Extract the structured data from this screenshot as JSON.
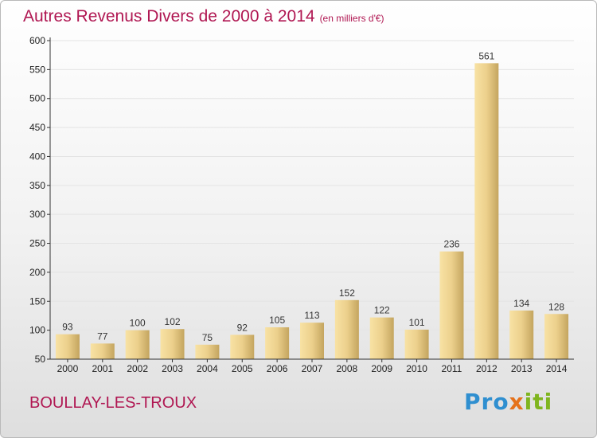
{
  "title": "Autres Revenus Divers de 2000 à 2014",
  "unit": "(en milliers d'€)",
  "commune": "BOULLAY-LES-TROUX",
  "logo": {
    "p1": "Pro",
    "p2": "x",
    "p3": "iti"
  },
  "colors": {
    "title": "#b01752",
    "bar_light": "#f8e2a4",
    "bar_dark": "#c4a55f",
    "axis": "#333333",
    "grid": "#e4e4e4"
  },
  "chart_data": {
    "type": "bar",
    "categories": [
      "2000",
      "2001",
      "2002",
      "2003",
      "2004",
      "2005",
      "2006",
      "2007",
      "2008",
      "2009",
      "2010",
      "2011",
      "2012",
      "2013",
      "2014"
    ],
    "values": [
      93,
      77,
      100,
      102,
      75,
      92,
      105,
      113,
      152,
      122,
      101,
      236,
      561,
      134,
      128
    ],
    "ylim": [
      50,
      600
    ],
    "yticks": [
      50,
      100,
      150,
      200,
      250,
      300,
      350,
      400,
      450,
      500,
      550,
      600
    ],
    "grid": true,
    "title": "Autres Revenus Divers de 2000 à 2014",
    "xlabel": "",
    "ylabel": ""
  }
}
